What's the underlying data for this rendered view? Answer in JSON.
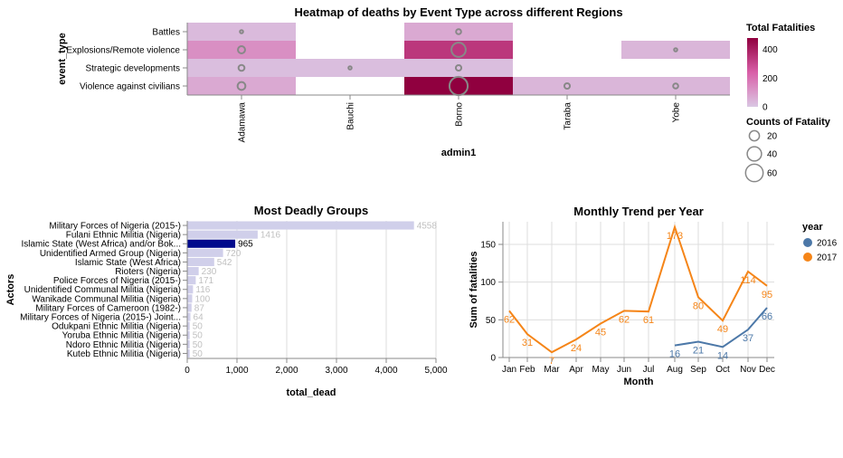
{
  "chart_data": [
    {
      "type": "heatmap",
      "title": "Heatmap of deaths by Event Type across different Regions",
      "xlabel": "admin1",
      "ylabel": "event_type",
      "x_categories": [
        "Adamawa",
        "Bauchi",
        "Borno",
        "Taraba",
        "Yobe"
      ],
      "y_categories": [
        "Battles",
        "Explosions/Remote violence",
        "Strategic developments",
        "Violence against civilians"
      ],
      "cells": [
        {
          "x": "Adamawa",
          "y": "Battles",
          "total": 30,
          "count": 2
        },
        {
          "x": "Adamawa",
          "y": "Explosions/Remote violence",
          "total": 130,
          "count": 10
        },
        {
          "x": "Adamawa",
          "y": "Strategic developments",
          "total": 20,
          "count": 7
        },
        {
          "x": "Adamawa",
          "y": "Violence against civilians",
          "total": 70,
          "count": 12
        },
        {
          "x": "Bauchi",
          "y": "Strategic developments",
          "total": 20,
          "count": 2
        },
        {
          "x": "Borno",
          "y": "Battles",
          "total": 70,
          "count": 5
        },
        {
          "x": "Borno",
          "y": "Explosions/Remote violence",
          "total": 340,
          "count": 40
        },
        {
          "x": "Borno",
          "y": "Strategic developments",
          "total": 20,
          "count": 6
        },
        {
          "x": "Borno",
          "y": "Violence against civilians",
          "total": 480,
          "count": 65
        },
        {
          "x": "Taraba",
          "y": "Violence against civilians",
          "total": 40,
          "count": 6
        },
        {
          "x": "Yobe",
          "y": "Explosions/Remote violence",
          "total": 40,
          "count": 2
        },
        {
          "x": "Yobe",
          "y": "Violence against civilians",
          "total": 40,
          "count": 5
        }
      ],
      "color_legend": {
        "title": "Total Fatalities",
        "ticks": [
          0,
          200,
          400
        ],
        "domain": [
          0,
          480
        ],
        "low_color": "#dac7e3",
        "high_color": "#90003f"
      },
      "size_legend": {
        "title": "Counts of Fatality",
        "values": [
          20,
          40,
          60
        ]
      }
    },
    {
      "type": "bar",
      "orientation": "horizontal",
      "title": "Most Deadly Groups",
      "xlabel": "total_dead",
      "ylabel": "Actors",
      "categories": [
        "Military Forces of Nigeria (2015-)",
        "Fulani Ethnic Militia (Nigeria)",
        "Islamic State (West Africa) and/or Bok...",
        "Unidentified Armed Group (Nigeria)",
        "Islamic State (West Africa)",
        "Rioters (Nigeria)",
        "Police Forces of Nigeria (2015-)",
        "Unidentified Communal Militia (Nigeria)",
        "Wanikade Communal Militia (Nigeria)",
        "Military Forces of Cameroon (1982-)",
        "Military Forces of Nigeria (2015-) Joint...",
        "Odukpani Ethnic Militia (Nigeria)",
        "Yoruba Ethnic Militia (Nigeria)",
        "Ndoro Ethnic Militia (Nigeria)",
        "Kuteb Ethnic Militia (Nigeria)"
      ],
      "values": [
        4558,
        1416,
        965,
        720,
        542,
        230,
        171,
        116,
        100,
        87,
        64,
        50,
        50,
        50,
        50
      ],
      "value_labels": [
        "4558",
        "1416",
        "965",
        "720",
        "542",
        "230",
        "171",
        "116",
        "100",
        "87",
        "64",
        "50",
        "50",
        "50",
        "50"
      ],
      "highlight_index": 2,
      "xlim": [
        0,
        5000
      ],
      "xticks": [
        "0",
        "1,000",
        "2,000",
        "3,000",
        "4,000",
        "5,000"
      ],
      "colors": {
        "bar": "#d0cfea",
        "highlight": "#000a8c",
        "label": "#c0c0c0",
        "highlight_label": "#000000"
      }
    },
    {
      "type": "line",
      "title": "Monthly Trend per Year",
      "xlabel": "Month",
      "ylabel": "Sum of fatalities",
      "x": [
        "Jan",
        "Feb",
        "Mar",
        "Apr",
        "May",
        "Jun",
        "Jul",
        "Aug",
        "Sep",
        "Oct",
        "Nov",
        "Dec"
      ],
      "ylim": [
        0,
        180
      ],
      "yticks": [
        "0",
        "50",
        "100",
        "150"
      ],
      "legend_title": "year",
      "series": [
        {
          "name": "2016",
          "color": "#4c78a8",
          "values": [
            null,
            null,
            null,
            null,
            null,
            null,
            null,
            16,
            21,
            14,
            37,
            66
          ]
        },
        {
          "name": "2017",
          "color": "#f58518",
          "values": [
            62,
            31,
            7,
            24,
            45,
            62,
            61,
            173,
            80,
            49,
            114,
            95
          ]
        }
      ]
    }
  ]
}
